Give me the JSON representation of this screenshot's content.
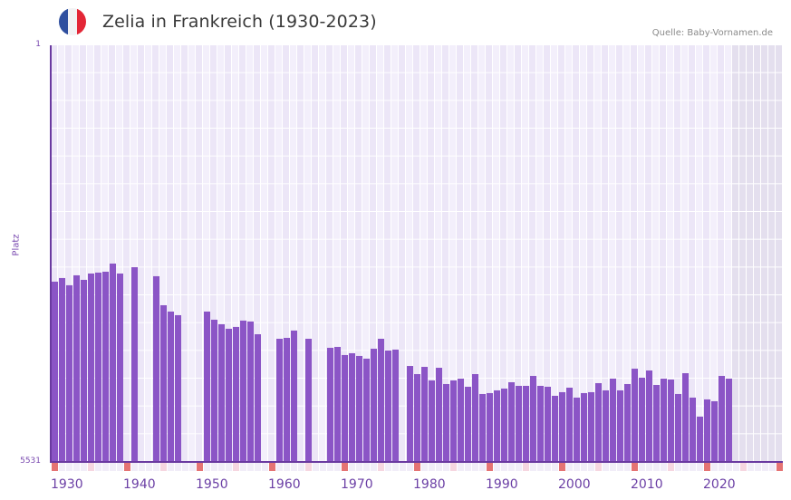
{
  "header": {
    "title": "Zelia in Frankreich (1930-2023)",
    "source": "Quelle: Baby-Vornamen.de",
    "flag_colors": [
      "#2f4f9f",
      "#f2f2f4",
      "#e32636"
    ]
  },
  "axes": {
    "y_label": "Platz",
    "y_top_tick": "1",
    "y_bottom_tick": "5531",
    "x_ticks": [
      "1930",
      "1940",
      "1950",
      "1960",
      "1970",
      "1980",
      "1990",
      "2000",
      "2010",
      "2020"
    ]
  },
  "colors": {
    "bar": "#8b55c6",
    "axis": "#6a3aa0",
    "grid_bg_a": "#f3effb",
    "grid_bg_b": "#ece6f7",
    "future_bg": "#e4dfee",
    "decade_marker": "#e57373",
    "half_decade_marker": "#f6d6e0"
  },
  "chart_data": {
    "type": "bar",
    "title": "Zelia in Frankreich (1930-2023)",
    "xlabel": "",
    "ylabel": "Platz",
    "y_inverted": true,
    "ylim": [
      1,
      5531
    ],
    "x_range": [
      1930,
      2030
    ],
    "grid": true,
    "legend": null,
    "x": [
      1930,
      1931,
      1932,
      1933,
      1934,
      1935,
      1936,
      1937,
      1938,
      1939,
      1940,
      1941,
      1942,
      1943,
      1944,
      1945,
      1946,
      1947,
      1948,
      1949,
      1950,
      1951,
      1952,
      1953,
      1954,
      1955,
      1956,
      1957,
      1958,
      1959,
      1960,
      1961,
      1962,
      1963,
      1964,
      1965,
      1966,
      1967,
      1968,
      1969,
      1970,
      1971,
      1972,
      1973,
      1974,
      1975,
      1976,
      1977,
      1978,
      1979,
      1980,
      1981,
      1982,
      1983,
      1984,
      1985,
      1986,
      1987,
      1988,
      1989,
      1990,
      1991,
      1992,
      1993,
      1994,
      1995,
      1996,
      1997,
      1998,
      1999,
      2000,
      2001,
      2002,
      2003,
      2004,
      2005,
      2006,
      2007,
      2008,
      2009,
      2010,
      2011,
      2012,
      2013,
      2014,
      2015,
      2016,
      2017,
      2018,
      2019,
      2020,
      2021,
      2022,
      2023
    ],
    "values": [
      3138,
      3090,
      3186,
      3054,
      3114,
      3030,
      3018,
      3006,
      2898,
      3030,
      null,
      2946,
      null,
      null,
      3066,
      3451,
      3535,
      3583,
      null,
      null,
      null,
      3535,
      3643,
      3703,
      3763,
      3739,
      3655,
      3667,
      3836,
      null,
      null,
      3896,
      3884,
      3787,
      null,
      3896,
      null,
      null,
      4016,
      4004,
      4112,
      4088,
      4124,
      4160,
      4028,
      3896,
      4052,
      4040,
      null,
      4257,
      4365,
      4269,
      4449,
      4281,
      4497,
      4449,
      4425,
      4533,
      4365,
      4629,
      4617,
      4581,
      4557,
      4473,
      4521,
      4521,
      4389,
      4521,
      4533,
      4653,
      4605,
      4545,
      4677,
      4617,
      4605,
      4485,
      4581,
      4425,
      4581,
      4497,
      4293,
      4413,
      4317,
      4509,
      4425,
      4437,
      4629,
      4353,
      4677,
      4929,
      4701,
      4725,
      4389,
      4425
    ]
  }
}
